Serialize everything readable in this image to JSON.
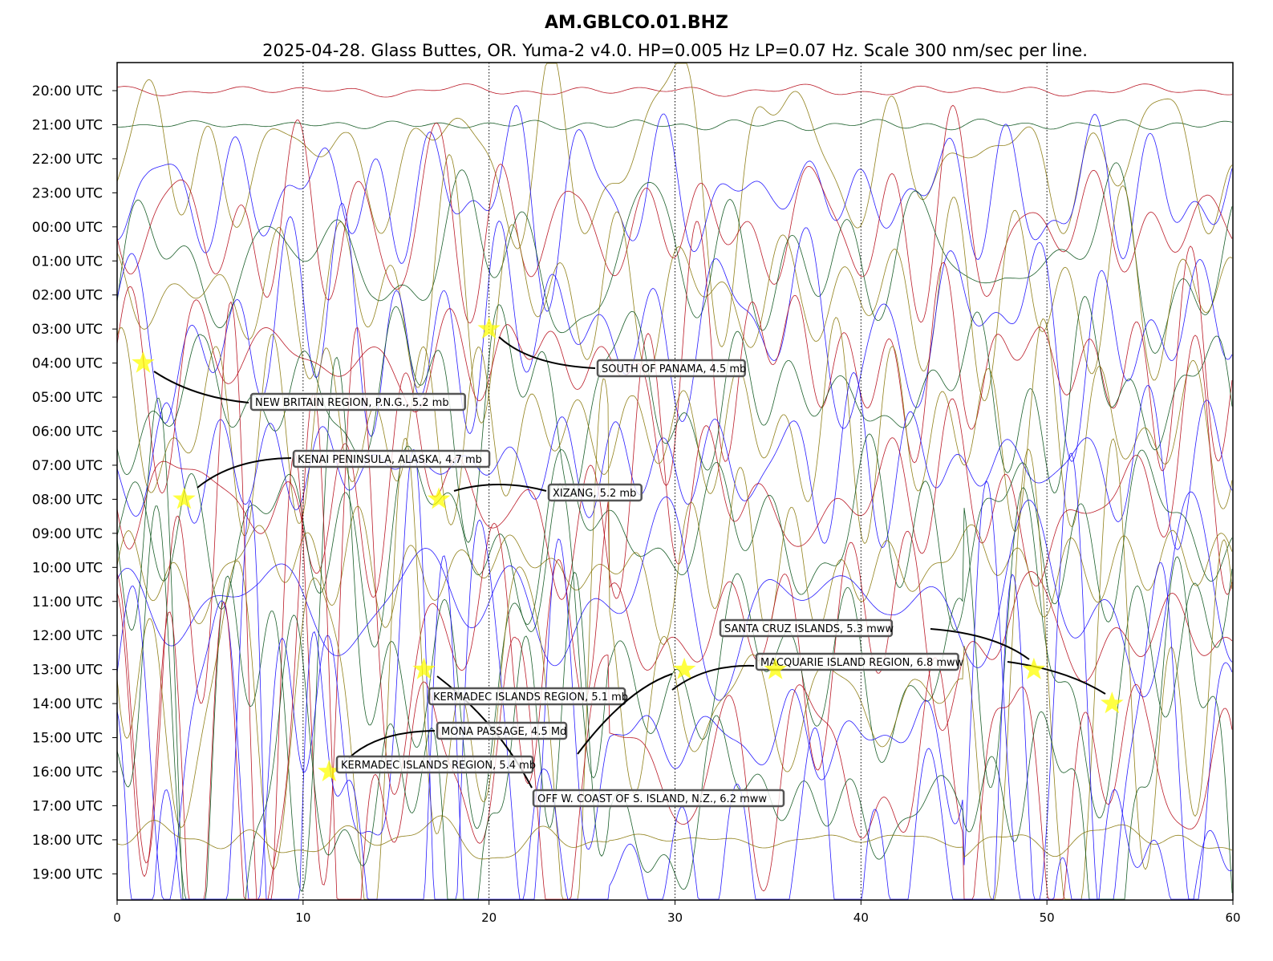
{
  "chart_data": {
    "type": "line",
    "title": "AM.GBLCO.01.BHZ",
    "subtitle": "2025-04-28. Glass Buttes, OR. Yuma-2 v4.0. HP=0.005 Hz LP=0.07 Hz. Scale 300 nm/sec per line.",
    "xlabel": "",
    "ylabel": "",
    "xlim": [
      0,
      60
    ],
    "x_ticks": [
      "0",
      "10",
      "20",
      "30",
      "40",
      "50",
      "60"
    ],
    "y_ticks": [
      "20:00 UTC",
      "21:00 UTC",
      "22:00 UTC",
      "23:00 UTC",
      "00:00 UTC",
      "01:00 UTC",
      "02:00 UTC",
      "03:00 UTC",
      "04:00 UTC",
      "05:00 UTC",
      "06:00 UTC",
      "07:00 UTC",
      "08:00 UTC",
      "09:00 UTC",
      "10:00 UTC",
      "11:00 UTC",
      "12:00 UTC",
      "13:00 UTC",
      "14:00 UTC",
      "15:00 UTC",
      "16:00 UTC",
      "17:00 UTC",
      "18:00 UTC",
      "19:00 UTC"
    ],
    "series_colors": [
      "#B2000F",
      "#004C12",
      "#847200",
      "#0E01FF"
    ],
    "grid": "vertical dotted",
    "events": [
      {
        "label": "NEW BRITAIN REGION, P.N.G., 5.2 mb",
        "minute": 1.4,
        "row": 8
      },
      {
        "label": "SOUTH OF PANAMA, 4.5 mb",
        "minute": 20.0,
        "row": 7
      },
      {
        "label": "KENAI PENINSULA, ALASKA, 4.7 mb",
        "minute": 3.6,
        "row": 12
      },
      {
        "label": "XIZANG, 5.2 mb",
        "minute": 17.3,
        "row": 12
      },
      {
        "label": "OFF W. COAST OF S. ISLAND, N.Z., 6.2 mww",
        "minute": 16.5,
        "row": 17
      },
      {
        "label": "KERMADEC ISLANDS REGION, 5.1 mb",
        "minute": 30.5,
        "row": 17
      },
      {
        "label": "MACQUARIE ISLAND REGION, 6.8 mww",
        "minute": 53.5,
        "row": 18
      },
      {
        "label": "SANTA CRUZ ISLANDS, 5.3 mww",
        "minute": 49.3,
        "row": 17
      },
      {
        "label": "MONA PASSAGE, 4.5 Md",
        "minute": 11.4,
        "row": 20
      },
      {
        "label": "KERMADEC ISLANDS REGION, 5.4 mb",
        "minute": 35.4,
        "row": 17
      }
    ]
  }
}
